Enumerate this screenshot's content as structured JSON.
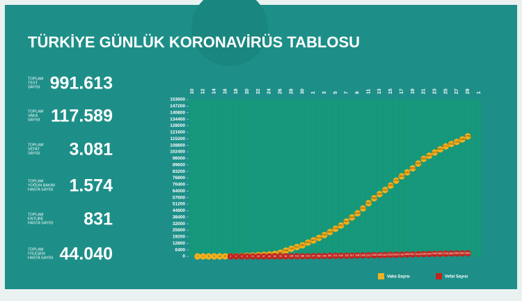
{
  "header": {
    "title": "TÜRKİYE GÜNLÜK KORONAVİRÜS TABLOSU"
  },
  "stats": [
    {
      "label": [
        "TOPLAM",
        "TEST",
        "SAYISI"
      ],
      "value": "991.613"
    },
    {
      "label": [
        "TOPLAM",
        "VAKA",
        "SAYISI"
      ],
      "value": "117.589"
    },
    {
      "label": [
        "TOPLAM",
        "VEFAT",
        "SAYISI"
      ],
      "value": "3.081"
    },
    {
      "label": [
        "TOPLAM",
        "YOĞUN BAKIM",
        "HASTA SAYISI"
      ],
      "value": "1.574"
    },
    {
      "label": [
        "TOPLAM",
        "ENTUBE",
        "HASTA SAYISI"
      ],
      "value": "831"
    },
    {
      "label": [
        "TOPLAM",
        "İYİLEŞEN",
        "HASTA SAYISI"
      ],
      "value": "44.040"
    }
  ],
  "chart_data": {
    "type": "dot",
    "categories": [
      "10",
      null,
      "12",
      null,
      "14",
      null,
      "16",
      null,
      "18",
      null,
      "20",
      null,
      "22",
      null,
      "24",
      null,
      "26",
      null,
      "28",
      null,
      "30",
      null,
      "1",
      null,
      "3",
      null,
      "5",
      null,
      "7",
      null,
      "9",
      null,
      "11",
      null,
      "13",
      null,
      "15",
      null,
      "17",
      null,
      "19",
      null,
      "21",
      null,
      "23",
      null,
      "25",
      null,
      "27",
      null,
      "29",
      null,
      "1"
    ],
    "series": [
      {
        "name": "Vaka Sayısı",
        "color": "#f2b01e",
        "values": [
          null,
          1,
          1,
          5,
          6,
          18,
          47,
          98,
          191,
          359,
          670,
          947,
          1236,
          1529,
          1872,
          2433,
          3629,
          5698,
          7402,
          9217,
          10827,
          13531,
          15679,
          18135,
          20921,
          23934,
          27069,
          30217,
          34109,
          38226,
          42282,
          47029,
          52167,
          56956,
          61049,
          65111,
          69392,
          74193,
          78546,
          82329,
          86306,
          90980,
          95591,
          98674,
          101790,
          104912,
          107773,
          110130,
          112261,
          114653,
          117589,
          null,
          null
        ]
      },
      {
        "name": "Vefat Sayısı",
        "color": "#c0261e",
        "values": [
          null,
          null,
          null,
          null,
          null,
          null,
          null,
          1,
          2,
          3,
          9,
          21,
          30,
          37,
          44,
          59,
          75,
          92,
          108,
          131,
          168,
          214,
          277,
          356,
          425,
          501,
          574,
          649,
          725,
          812,
          908,
          1006,
          1101,
          1198,
          1296,
          1403,
          1518,
          1643,
          1769,
          1890,
          2017,
          2140,
          2259,
          2376,
          2491,
          2600,
          2706,
          2805,
          2900,
          2992,
          3081,
          null,
          null
        ]
      }
    ],
    "ylim": [
      0,
      153600
    ],
    "yticks": [
      0,
      6400,
      12800,
      19200,
      25600,
      32000,
      38400,
      44800,
      51200,
      57600,
      64000,
      70400,
      76800,
      83200,
      89600,
      96000,
      102400,
      108800,
      115200,
      121600,
      128000,
      134400,
      140800,
      147200,
      153600
    ]
  }
}
